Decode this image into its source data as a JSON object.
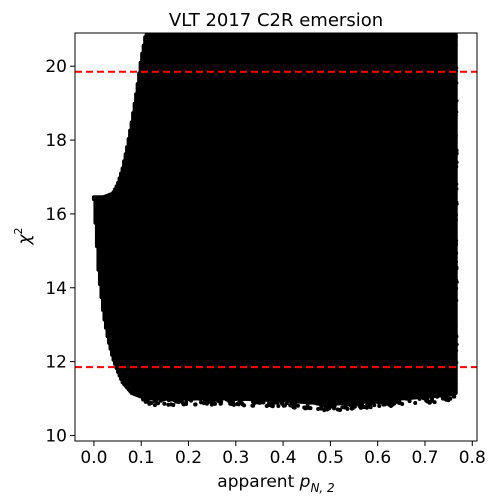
{
  "chart_data": {
    "type": "scatter",
    "title": "VLT 2017 C2R emersion",
    "xlabel": {
      "prefix": "apparent ",
      "var": "p",
      "sub": "N, 2"
    },
    "ylabel": {
      "var": "χ",
      "sup": "2"
    },
    "xlim": [
      -0.04,
      0.81
    ],
    "ylim": [
      9.85,
      20.9
    ],
    "xticks": [
      0.0,
      0.1,
      0.2,
      0.3,
      0.4,
      0.5,
      0.6,
      0.7,
      0.8
    ],
    "xtick_labels": [
      "0.0",
      "0.1",
      "0.2",
      "0.3",
      "0.4",
      "0.5",
      "0.6",
      "0.7",
      "0.8"
    ],
    "yticks": [
      10,
      12,
      14,
      16,
      18,
      20
    ],
    "ytick_labels": [
      "10",
      "12",
      "14",
      "16",
      "18",
      "20"
    ],
    "grid": false,
    "point_color": "#000000",
    "line_color": "#ff0000",
    "hlines": [
      {
        "y": 19.85,
        "style": "dashed"
      },
      {
        "y": 11.85,
        "style": "dashed"
      }
    ],
    "lower_envelope": {
      "x": [
        0.0,
        0.01,
        0.02,
        0.03,
        0.04,
        0.05,
        0.06,
        0.08,
        0.1,
        0.12,
        0.15,
        0.2,
        0.3,
        0.4,
        0.45,
        0.5,
        0.55,
        0.6,
        0.65,
        0.7,
        0.75,
        0.765
      ],
      "y": [
        16.4,
        14.4,
        13.3,
        12.6,
        12.1,
        11.75,
        11.45,
        11.15,
        11.05,
        11.0,
        11.0,
        11.0,
        11.0,
        10.95,
        10.9,
        10.85,
        10.9,
        10.95,
        11.0,
        11.05,
        11.1,
        11.15
      ]
    },
    "upper_envelope": {
      "x": [
        0.0,
        0.02,
        0.04,
        0.05,
        0.06,
        0.07,
        0.08,
        0.09,
        0.1,
        0.11,
        0.765
      ],
      "y": [
        16.45,
        16.45,
        16.55,
        16.8,
        17.2,
        17.8,
        18.5,
        19.3,
        20.2,
        20.9,
        20.9
      ]
    }
  }
}
